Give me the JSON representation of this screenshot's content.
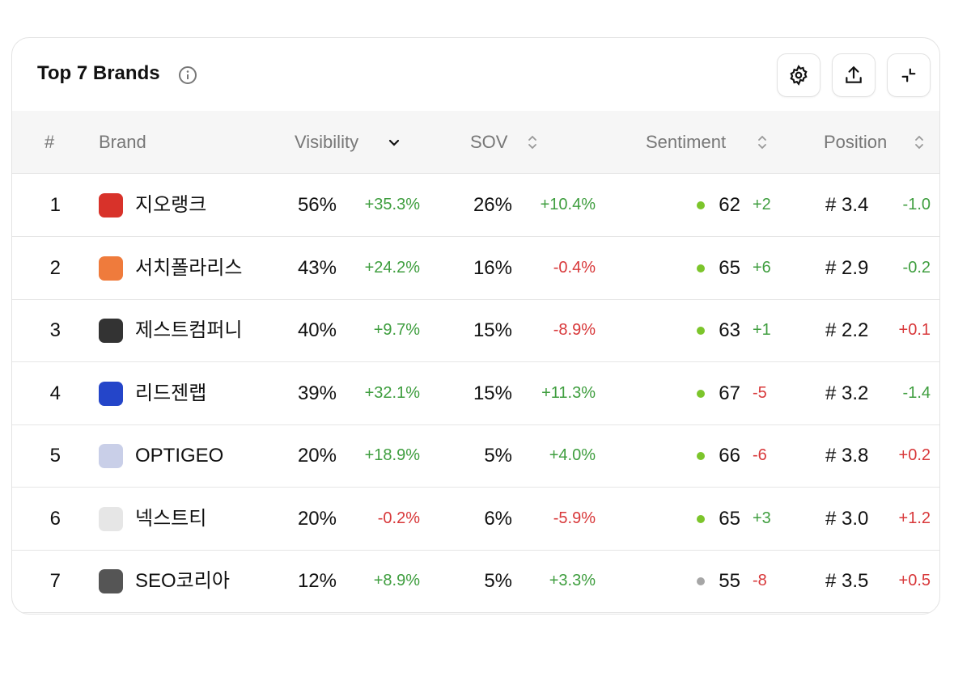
{
  "header": {
    "title": "Top 7 Brands"
  },
  "table": {
    "columns": [
      {
        "label": "#",
        "sortable": false
      },
      {
        "label": "Brand",
        "sortable": false
      },
      {
        "label": "Visibility",
        "sortable": true,
        "sorted": "desc"
      },
      {
        "label": "SOV",
        "sortable": true
      },
      {
        "label": "Sentiment",
        "sortable": true
      },
      {
        "label": "Position",
        "sortable": true
      }
    ],
    "rows": [
      {
        "rank": "1",
        "brand": "지오랭크",
        "logo_color": "#d8322a",
        "visibility": "56%",
        "visibility_change": "+35.3%",
        "sov": "26%",
        "sov_change": "+10.4%",
        "sentiment": "62",
        "sentiment_change": "+2",
        "sentiment_dot": "#7cc52b",
        "position": "# 3.4",
        "position_change": "-1.0"
      },
      {
        "rank": "2",
        "brand": "서치폴라리스",
        "logo_color": "#ef7b3c",
        "visibility": "43%",
        "visibility_change": "+24.2%",
        "sov": "16%",
        "sov_change": "-0.4%",
        "sentiment": "65",
        "sentiment_change": "+6",
        "sentiment_dot": "#7cc52b",
        "position": "# 2.9",
        "position_change": "-0.2"
      },
      {
        "rank": "3",
        "brand": "제스트컴퍼니",
        "logo_color": "#333333",
        "visibility": "40%",
        "visibility_change": "+9.7%",
        "sov": "15%",
        "sov_change": "-8.9%",
        "sentiment": "63",
        "sentiment_change": "+1",
        "sentiment_dot": "#7cc52b",
        "position": "# 2.2",
        "position_change": "+0.1"
      },
      {
        "rank": "4",
        "brand": "리드젠랩",
        "logo_color": "#2445c9",
        "visibility": "39%",
        "visibility_change": "+32.1%",
        "sov": "15%",
        "sov_change": "+11.3%",
        "sentiment": "67",
        "sentiment_change": "-5",
        "sentiment_dot": "#7cc52b",
        "position": "# 3.2",
        "position_change": "-1.4"
      },
      {
        "rank": "5",
        "brand": "OPTIGEO",
        "logo_color": "#c9cfe8",
        "visibility": "20%",
        "visibility_change": "+18.9%",
        "sov": "5%",
        "sov_change": "+4.0%",
        "sentiment": "66",
        "sentiment_change": "-6",
        "sentiment_dot": "#7cc52b",
        "position": "# 3.8",
        "position_change": "+0.2"
      },
      {
        "rank": "6",
        "brand": "넥스트티",
        "logo_color": "#e6e6e6",
        "visibility": "20%",
        "visibility_change": "-0.2%",
        "sov": "6%",
        "sov_change": "-5.9%",
        "sentiment": "65",
        "sentiment_change": "+3",
        "sentiment_dot": "#7cc52b",
        "position": "# 3.0",
        "position_change": "+1.2"
      },
      {
        "rank": "7",
        "brand": "SEO코리아",
        "logo_color": "#555555",
        "visibility": "12%",
        "visibility_change": "+8.9%",
        "sov": "5%",
        "sov_change": "+3.3%",
        "sentiment": "55",
        "sentiment_change": "-8",
        "sentiment_dot": "#a6a6a6",
        "position": "# 3.5",
        "position_change": "+0.5"
      }
    ]
  }
}
